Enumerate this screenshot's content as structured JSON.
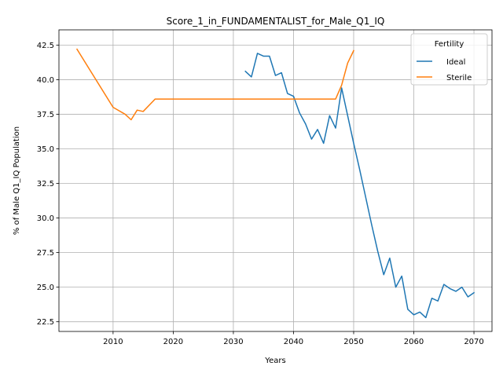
{
  "chart_data": {
    "type": "line",
    "title": "Score_1_in_FUNDAMENTALIST_for_Male_Q1_IQ",
    "xlabel": "Years",
    "ylabel": "% of Male Q1_IQ Population",
    "xlim": [
      2001,
      2073
    ],
    "ylim": [
      21.8,
      43.6
    ],
    "xticks": [
      2010,
      2020,
      2030,
      2040,
      2050,
      2060,
      2070
    ],
    "yticks": [
      22.5,
      25.0,
      27.5,
      30.0,
      32.5,
      35.0,
      37.5,
      40.0,
      42.5
    ],
    "ytick_labels": [
      "22.5",
      "25.0",
      "27.5",
      "30.0",
      "32.5",
      "35.0",
      "37.5",
      "40.0",
      "42.5"
    ],
    "grid": true,
    "legend": {
      "title": "Fertility",
      "position": "top-right"
    },
    "series": [
      {
        "name": "Ideal",
        "color": "#1f77b4",
        "points": [
          [
            2032,
            40.6
          ],
          [
            2033,
            40.2
          ],
          [
            2034,
            41.9
          ],
          [
            2035,
            41.7
          ],
          [
            2036,
            41.7
          ],
          [
            2037,
            40.3
          ],
          [
            2038,
            40.5
          ],
          [
            2039,
            39.0
          ],
          [
            2040,
            38.8
          ],
          [
            2041,
            37.6
          ],
          [
            2042,
            36.8
          ],
          [
            2043,
            35.7
          ],
          [
            2044,
            36.4
          ],
          [
            2045,
            35.4
          ],
          [
            2046,
            37.4
          ],
          [
            2047,
            36.5
          ],
          [
            2048,
            39.4
          ],
          [
            2049,
            37.4
          ],
          [
            2050,
            35.4
          ],
          [
            2051,
            33.5
          ],
          [
            2052,
            31.5
          ],
          [
            2053,
            29.5
          ],
          [
            2054,
            27.6
          ],
          [
            2055,
            25.9
          ],
          [
            2056,
            27.1
          ],
          [
            2057,
            25.0
          ],
          [
            2058,
            25.8
          ],
          [
            2059,
            23.4
          ],
          [
            2060,
            23.0
          ],
          [
            2061,
            23.2
          ],
          [
            2062,
            22.8
          ],
          [
            2063,
            24.2
          ],
          [
            2064,
            24.0
          ],
          [
            2065,
            25.2
          ],
          [
            2066,
            24.9
          ],
          [
            2067,
            24.7
          ],
          [
            2068,
            25.0
          ],
          [
            2069,
            24.3
          ],
          [
            2070,
            24.6
          ]
        ]
      },
      {
        "name": "Sterile",
        "color": "#ff7f0e",
        "points": [
          [
            2004,
            42.2
          ],
          [
            2010,
            38.0
          ],
          [
            2012,
            37.5
          ],
          [
            2013,
            37.1
          ],
          [
            2014,
            37.8
          ],
          [
            2015,
            37.7
          ],
          [
            2017,
            38.6
          ],
          [
            2047,
            38.6
          ],
          [
            2048,
            39.6
          ],
          [
            2049,
            41.2
          ],
          [
            2050,
            42.1
          ]
        ]
      }
    ]
  }
}
